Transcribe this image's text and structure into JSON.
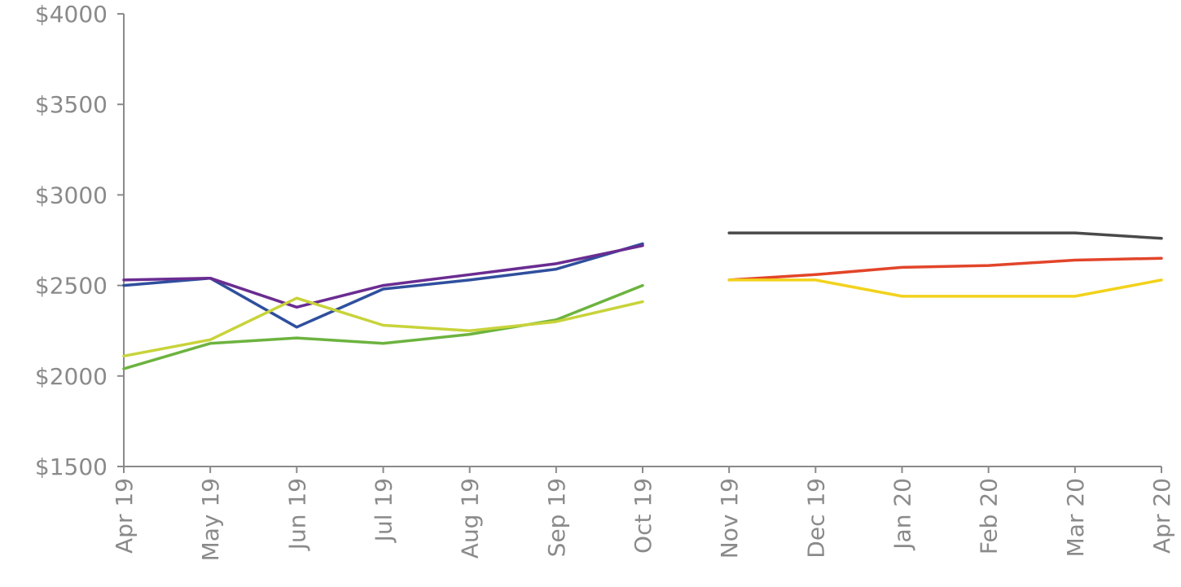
{
  "chart_data": {
    "type": "line",
    "title": "",
    "xlabel": "",
    "ylabel": "",
    "categories": [
      "Apr 19",
      "May 19",
      "Jun 19",
      "Jul 19",
      "Aug 19",
      "Sep 19",
      "Oct 19",
      "Nov 19",
      "Dec 19",
      "Jan 20",
      "Feb 20",
      "Mar 20",
      "Apr 20"
    ],
    "ylim": [
      1500,
      4000
    ],
    "yticks": [
      "$1500",
      "$2000",
      "$2500",
      "$3000",
      "$3500",
      "$4000"
    ],
    "ytick_values": [
      1500,
      2000,
      2500,
      3000,
      3500,
      4000
    ],
    "grid": false,
    "legend": "none",
    "series": [
      {
        "color": "#2f4f9e",
        "values": [
          2500,
          2540,
          2270,
          2480,
          2530,
          2590,
          2730,
          null,
          null,
          null,
          null,
          null,
          null
        ]
      },
      {
        "color": "#6a2c91",
        "values": [
          2530,
          2540,
          2380,
          2500,
          2560,
          2620,
          2720,
          null,
          null,
          null,
          null,
          null,
          null
        ]
      },
      {
        "color": "#6cb33f",
        "values": [
          2040,
          2180,
          2210,
          2180,
          2230,
          2310,
          2500,
          null,
          null,
          null,
          null,
          null,
          null
        ]
      },
      {
        "color": "#c8d33a",
        "values": [
          2110,
          2200,
          2430,
          2280,
          2250,
          2300,
          2410,
          null,
          null,
          null,
          null,
          null,
          null
        ]
      },
      {
        "color": "#4a4a4a",
        "values": [
          null,
          null,
          null,
          null,
          null,
          null,
          null,
          2790,
          2790,
          2790,
          2790,
          2790,
          2760
        ]
      },
      {
        "color": "#e2452a",
        "values": [
          null,
          null,
          null,
          null,
          null,
          null,
          null,
          2530,
          2560,
          2600,
          2610,
          2640,
          2650
        ]
      },
      {
        "color": "#f2d21b",
        "values": [
          null,
          null,
          null,
          null,
          null,
          null,
          null,
          2530,
          2530,
          2440,
          2440,
          2440,
          2530
        ]
      }
    ]
  }
}
